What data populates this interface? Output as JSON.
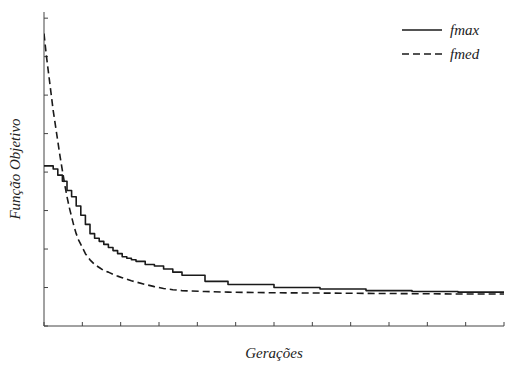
{
  "chart_data": {
    "type": "line",
    "xlabel": "Gerações",
    "ylabel": "Função Objetivo",
    "background_color": "#ffffff",
    "xlim": [
      0,
      100
    ],
    "ylim": [
      0,
      1.02
    ],
    "xticks": [
      0,
      8.333333333333334,
      16.666666666666668,
      25,
      33.333333333333336,
      41.66666666666667,
      50,
      58.333333333333336,
      66.66666666666667,
      75,
      83.33333333333334,
      91.66666666666667,
      100
    ],
    "yticks": [
      0,
      0.125,
      0.25,
      0.375,
      0.5,
      0.625,
      0.75,
      0.875,
      1
    ],
    "tick_labels": false,
    "grid": false,
    "legend": "upper right",
    "series": [
      {
        "name": "fmax",
        "type": "step",
        "line_style": "solid",
        "color": "#1a1a1a",
        "x": [
          0,
          1,
          2,
          3,
          4,
          5,
          6,
          7,
          8,
          9,
          10,
          11,
          12,
          13,
          14,
          15,
          16,
          17,
          18,
          19,
          20,
          22,
          24,
          26,
          28,
          30,
          35,
          40,
          50,
          60,
          70,
          80,
          90,
          100
        ],
        "values": [
          0.52,
          0.52,
          0.51,
          0.49,
          0.47,
          0.44,
          0.42,
          0.39,
          0.36,
          0.33,
          0.3,
          0.285,
          0.275,
          0.265,
          0.255,
          0.245,
          0.235,
          0.225,
          0.22,
          0.215,
          0.21,
          0.2,
          0.195,
          0.185,
          0.175,
          0.165,
          0.145,
          0.135,
          0.125,
          0.12,
          0.115,
          0.112,
          0.11,
          0.108
        ]
      },
      {
        "name": "fmed",
        "type": "line",
        "line_style": "dashed",
        "color": "#1a1a1a",
        "x": [
          0,
          0.5,
          1,
          1.5,
          2,
          2.5,
          3,
          3.5,
          4,
          4.5,
          5,
          5.5,
          6,
          6.5,
          7,
          7.5,
          8,
          8.5,
          9,
          9.5,
          10,
          11,
          12,
          13,
          14,
          15,
          16,
          17,
          18,
          19,
          20,
          22,
          24,
          26,
          28,
          30,
          35,
          40,
          50,
          60,
          70,
          80,
          90,
          100
        ],
        "values": [
          0.95,
          0.88,
          0.82,
          0.76,
          0.7,
          0.65,
          0.6,
          0.55,
          0.505,
          0.46,
          0.42,
          0.385,
          0.355,
          0.325,
          0.3,
          0.28,
          0.265,
          0.25,
          0.235,
          0.225,
          0.215,
          0.2,
          0.19,
          0.18,
          0.175,
          0.168,
          0.162,
          0.157,
          0.152,
          0.147,
          0.143,
          0.135,
          0.128,
          0.122,
          0.118,
          0.115,
          0.112,
          0.11,
          0.108,
          0.107,
          0.106,
          0.105,
          0.104,
          0.104
        ]
      }
    ]
  }
}
